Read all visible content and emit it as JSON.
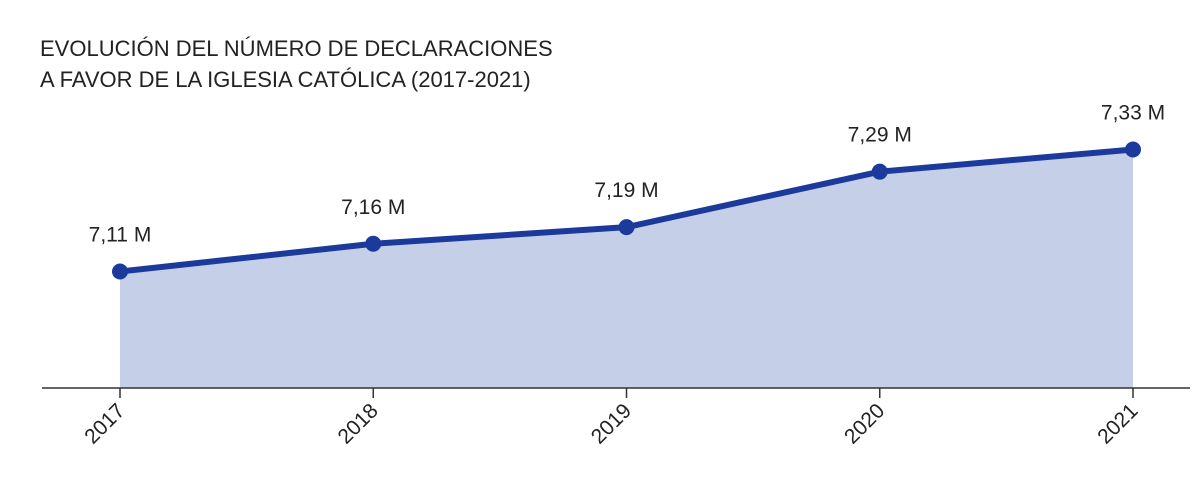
{
  "chart_data": {
    "type": "area-line",
    "title": [
      "EVOLUCIÓN DEL NÚMERO DE DECLARACIONES",
      "A FAVOR DE LA IGLESIA CATÓLICA (2017-2021)"
    ],
    "categories": [
      "2017",
      "2018",
      "2019",
      "2020",
      "2021"
    ],
    "values": [
      7.11,
      7.16,
      7.19,
      7.29,
      7.33
    ],
    "value_labels": [
      "7,11 M",
      "7,16 M",
      "7,19 M",
      "7,29 M",
      "7,33 M"
    ],
    "color": "#1b3a9c",
    "fill": "#c5cfe8",
    "ylim": [
      6.9,
      7.43
    ]
  }
}
